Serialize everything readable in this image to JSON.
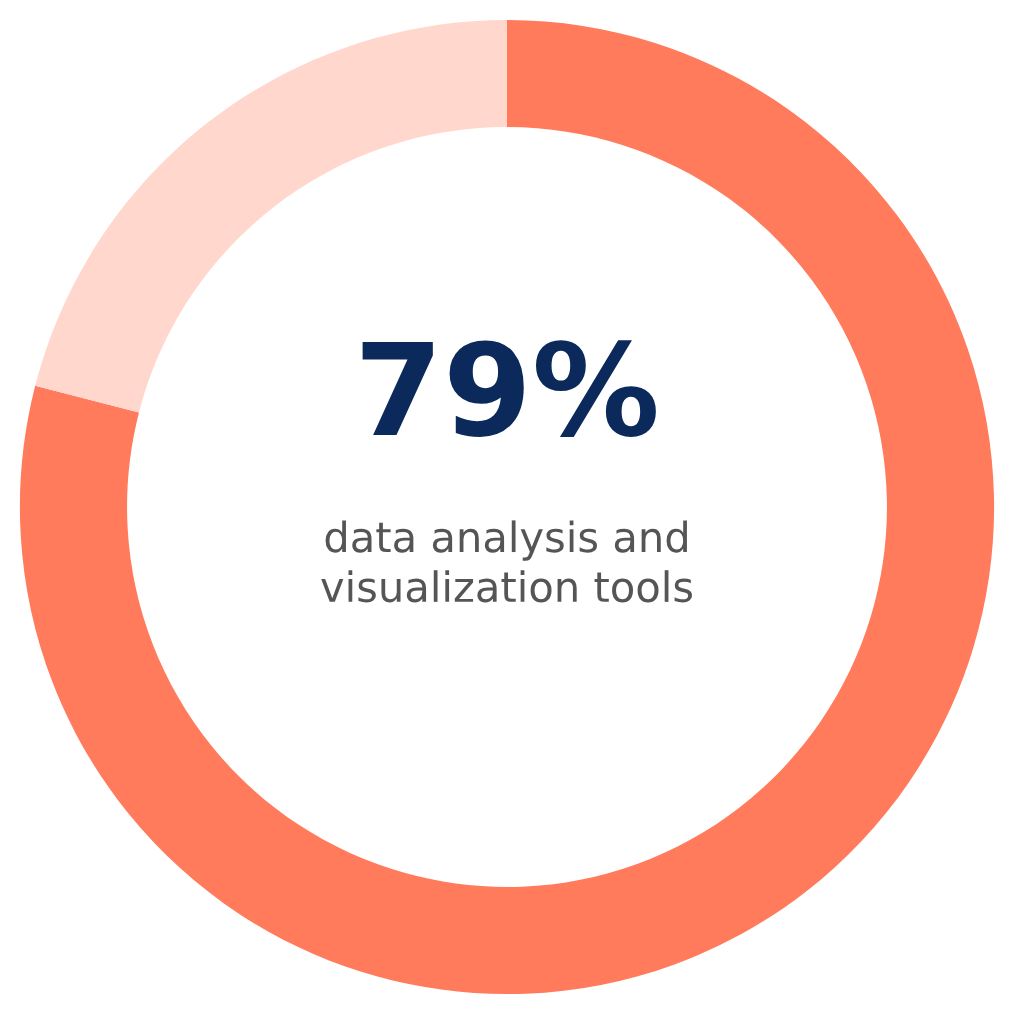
{
  "chart_data": {
    "type": "donut",
    "categories": [
      null,
      null
    ],
    "values": [
      79,
      21
    ],
    "colors": [
      "#ff7b5c",
      "#ffd7cc"
    ],
    "value_labels": [
      "79%",
      null
    ],
    "annotations": [
      "data analysis and\nvisualization tools"
    ]
  }
}
